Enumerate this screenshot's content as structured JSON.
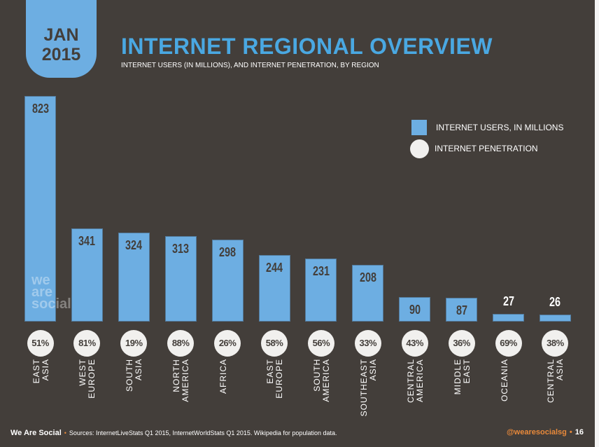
{
  "header": {
    "month": "JAN",
    "year": "2015",
    "title": "INTERNET REGIONAL OVERVIEW",
    "subtitle": "INTERNET USERS (IN MILLIONS), AND INTERNET PENETRATION, BY REGION"
  },
  "legend": {
    "users": "INTERNET USERS, IN MILLIONS",
    "penetration": "INTERNET PENETRATION"
  },
  "watermark": "we are social",
  "footer": {
    "brand": "We Are Social",
    "sources": "Sources: InternetLiveStats Q1 2015, InternetWorldStats Q1 2015. Wikipedia for population data.",
    "handle": "@wearesocialsg",
    "page": "16"
  },
  "colors": {
    "bar": "#6daee2",
    "title": "#4aa8e2",
    "background": "#433e3a",
    "circle": "#f1f0ee",
    "accent": "#e8893a"
  },
  "chart_data": {
    "type": "bar",
    "categories": [
      "EAST\nASIA",
      "WEST\nEUROPE",
      "SOUTH\nASIA",
      "NORTH\nAMERICA",
      "AFRICA",
      "EAST\nEUROPE",
      "SOUTH\nAMERICA",
      "SOUTHEAST\nASIA",
      "CENTRAL\nAMERICA",
      "MIDDLE\nEAST",
      "OCEANIA",
      "CENTRAL\nASIA"
    ],
    "series": [
      {
        "name": "INTERNET USERS, IN MILLIONS",
        "values": [
          823,
          341,
          324,
          313,
          298,
          244,
          231,
          208,
          90,
          87,
          27,
          26
        ]
      },
      {
        "name": "INTERNET PENETRATION",
        "values": [
          "51%",
          "81%",
          "19%",
          "88%",
          "26%",
          "58%",
          "56%",
          "33%",
          "43%",
          "36%",
          "69%",
          "38%"
        ]
      }
    ],
    "legend": "top-right",
    "grid": false
  }
}
